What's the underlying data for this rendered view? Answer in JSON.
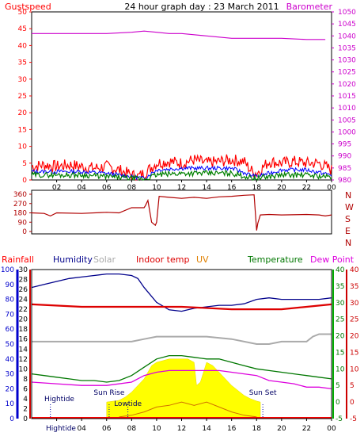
{
  "title": "24 hour graph day : 23 March 2011",
  "colors": {
    "gust": "#ff0000",
    "wind": "#0000ff",
    "windavg": "#008000",
    "baro": "#cc00cc",
    "winddir": "#b00000",
    "humidity": "#00008b",
    "solar": "#aaaaaa",
    "indoor": "#dd0000",
    "uv": "#e08000",
    "temperature": "#007700",
    "dewpoint": "#dd00dd",
    "solarfill": "#ffff00",
    "rain": "#ff0000",
    "uvline": "#d07000"
  },
  "x_ticks": [
    "02",
    "04",
    "06",
    "08",
    "10",
    "12",
    "14",
    "16",
    "18",
    "20",
    "22",
    "00"
  ],
  "chart_data": [
    {
      "type": "line",
      "name": "wind-barometer",
      "labels": {
        "left": "Gustspeed",
        "right": "Barometer"
      },
      "left_axis": {
        "range": [
          0,
          50
        ],
        "ticks": [
          "0",
          "5",
          "10",
          "15",
          "20",
          "25",
          "30",
          "35",
          "40",
          "45",
          "50"
        ]
      },
      "right_axis": {
        "range": [
          980,
          1050
        ],
        "ticks": [
          "980",
          "985",
          "990",
          "995",
          "1000",
          "1005",
          "1010",
          "1015",
          "1020",
          "1025",
          "1030",
          "1035",
          "1040",
          "1045",
          "1050"
        ]
      },
      "x_range": [
        0,
        24
      ],
      "barometer": {
        "x": [
          0,
          2,
          4,
          6,
          8,
          9,
          10,
          11,
          12,
          13,
          14,
          15,
          16,
          18,
          20,
          22,
          23.5
        ],
        "y": [
          1041,
          1041,
          1041,
          1041,
          1041.5,
          1042,
          1041.5,
          1041,
          1041,
          1040.5,
          1040,
          1039.5,
          1039,
          1039,
          1039,
          1038.5,
          1038.5
        ]
      },
      "gust_envelope": {
        "x": [
          0,
          1,
          2,
          3,
          4,
          5,
          6,
          7,
          8,
          8.5,
          9,
          10,
          11,
          12,
          13,
          14,
          15,
          16,
          17,
          17.5,
          18,
          19,
          20,
          21,
          22,
          23,
          23.5,
          24
        ],
        "y": [
          4,
          4.5,
          4,
          4.5,
          4,
          3.5,
          4,
          3,
          1.5,
          1,
          2,
          5,
          5.5,
          5,
          6,
          5,
          5.5,
          6,
          5.5,
          3,
          2,
          5.5,
          5,
          5.5,
          5,
          5,
          4,
          3
        ]
      },
      "wind_envelope": {
        "x": [
          0,
          2,
          4,
          6,
          8,
          9,
          10,
          12,
          14,
          16,
          17.5,
          18,
          20,
          22,
          24
        ],
        "y": [
          2.5,
          2.5,
          2.5,
          2,
          1,
          0.5,
          3,
          3.5,
          3.5,
          3.5,
          1.5,
          1,
          3,
          3,
          1.5
        ]
      },
      "avg_envelope": {
        "x": [
          0,
          2,
          4,
          6,
          8,
          9,
          10,
          12,
          14,
          16,
          17.5,
          18,
          20,
          22,
          24
        ],
        "y": [
          1.5,
          1.5,
          1.5,
          1,
          0.5,
          0.2,
          1.5,
          2,
          2,
          2,
          0.7,
          0.5,
          1.5,
          1.5,
          0.8
        ]
      }
    },
    {
      "type": "line",
      "name": "wind-direction",
      "left_axis": {
        "range": [
          0,
          360
        ],
        "ticks": [
          "0",
          "90",
          "180",
          "270",
          "360"
        ]
      },
      "compass_labels": [
        "N",
        "W",
        "S",
        "E",
        "N"
      ],
      "x_range": [
        0,
        24
      ],
      "series": [
        {
          "x": [
            0,
            1,
            1.5,
            2,
            4,
            6,
            7,
            8,
            9,
            9.1,
            9.3,
            9.6,
            9.9,
            10,
            10.2,
            11,
            12,
            13,
            14,
            15,
            16,
            17,
            17.8,
            18,
            18.1,
            18.3,
            19,
            20,
            22,
            23,
            23.5,
            24
          ],
          "y": [
            180,
            175,
            150,
            180,
            175,
            185,
            180,
            230,
            230,
            250,
            300,
            90,
            60,
            90,
            340,
            330,
            320,
            330,
            320,
            335,
            340,
            350,
            355,
            10,
            80,
            160,
            165,
            160,
            165,
            160,
            150,
            160
          ]
        }
      ]
    },
    {
      "type": "line",
      "name": "climate",
      "labels": {
        "rainfall": "Rainfall",
        "humidity": "Humidity",
        "solar": "Solar",
        "indoor": "Indoor temp",
        "uv": "UV",
        "temperature": "Temperature",
        "dewpoint": "Dew Point"
      },
      "humidity_axis": {
        "range": [
          0,
          100
        ],
        "ticks": [
          "0",
          "10",
          "20",
          "30",
          "40",
          "50",
          "60",
          "70",
          "80",
          "90",
          "100"
        ]
      },
      "rain_axis": {
        "range": [
          0,
          30
        ],
        "ticks": [
          "0",
          "2",
          "4",
          "6",
          "8",
          "10",
          "12",
          "14",
          "16",
          "18",
          "20",
          "22",
          "24",
          "26",
          "28",
          "30"
        ]
      },
      "temp_axis": {
        "range": [
          -5,
          40
        ],
        "ticks": [
          "-5",
          "0",
          "5",
          "10",
          "15",
          "20",
          "25",
          "30",
          "35",
          "40"
        ]
      },
      "x_range": [
        0,
        24
      ],
      "humidity": {
        "x": [
          0,
          1,
          2,
          3,
          4,
          5,
          6,
          7,
          8,
          8.5,
          9,
          10,
          11,
          12,
          13,
          14,
          15,
          16,
          17,
          18,
          19,
          20,
          21,
          22,
          23,
          24
        ],
        "y": [
          88,
          90,
          92,
          94,
          95,
          96,
          97,
          97,
          96,
          94,
          88,
          78,
          73,
          72,
          74,
          75,
          76,
          76,
          77,
          80,
          81,
          80,
          80,
          80,
          80,
          81
        ]
      },
      "indoor_temp": {
        "x": [
          0,
          4,
          8,
          12,
          16,
          20,
          24
        ],
        "y": [
          23,
          22.5,
          22.5,
          22.5,
          22,
          22,
          23
        ]
      },
      "solar_line": {
        "x": [
          0,
          4,
          8,
          9,
          10,
          12,
          14,
          16,
          18,
          19,
          20,
          22,
          22.5,
          23,
          24
        ],
        "y": [
          15.5,
          15.5,
          15.5,
          16,
          16.5,
          16.5,
          16.5,
          16,
          15,
          15,
          15.5,
          15.5,
          16.5,
          17,
          17
        ]
      },
      "temperature": {
        "x": [
          0,
          1,
          2,
          3,
          4,
          5,
          6,
          7,
          8,
          9,
          10,
          11,
          12,
          13,
          14,
          15,
          16,
          17,
          18,
          19,
          20,
          21,
          22,
          23,
          24
        ],
        "y": [
          8.5,
          8,
          7.5,
          7,
          6.5,
          6.5,
          6,
          6.5,
          8,
          10.5,
          13,
          14,
          14,
          13.5,
          13,
          13,
          12,
          11,
          10,
          9.5,
          9,
          8.5,
          8,
          7.5,
          7
        ]
      },
      "dewpoint": {
        "x": [
          0,
          2,
          4,
          6,
          8,
          9,
          10,
          11,
          12,
          13,
          14,
          15,
          16,
          17,
          18,
          19,
          20,
          21,
          22,
          23,
          24
        ],
        "y": [
          6,
          5.5,
          5,
          5,
          6,
          8,
          9,
          9.5,
          9.5,
          9.5,
          9.5,
          9.5,
          9,
          8.5,
          8,
          6.5,
          6,
          5.5,
          4.5,
          4.5,
          4
        ]
      },
      "solar_fill": {
        "x": [
          6,
          7,
          7.5,
          8,
          8.5,
          9,
          9.3,
          9.6,
          10,
          10.5,
          11,
          11.5,
          12,
          12.5,
          13,
          13.2,
          13.5,
          14,
          14.5,
          15,
          15.5,
          16,
          16.5,
          17,
          17.5,
          18,
          18.3
        ],
        "y": [
          0,
          0.5,
          1.5,
          3,
          5,
          7,
          9,
          11,
          12,
          12.5,
          13,
          13,
          13,
          13,
          12,
          5,
          6,
          12,
          11,
          9,
          7,
          5,
          3.5,
          2,
          1,
          0.3,
          0
        ]
      },
      "uv_curve": {
        "x": [
          7,
          8,
          9,
          10,
          11,
          12,
          13,
          14,
          15,
          16,
          17,
          18
        ],
        "y": [
          -4.5,
          -4,
          -3,
          -1.5,
          -1,
          0,
          -1,
          0,
          -1.5,
          -3,
          -4,
          -4.5
        ]
      },
      "events": [
        {
          "label": "Hightide",
          "x": 1.5
        },
        {
          "label": "Sun Rise",
          "x": 6.2
        },
        {
          "label": "Lowtide",
          "x": 7.7
        },
        {
          "label": "Sun Set",
          "x": 18.5
        }
      ],
      "bottom_label": "Hightide"
    }
  ]
}
